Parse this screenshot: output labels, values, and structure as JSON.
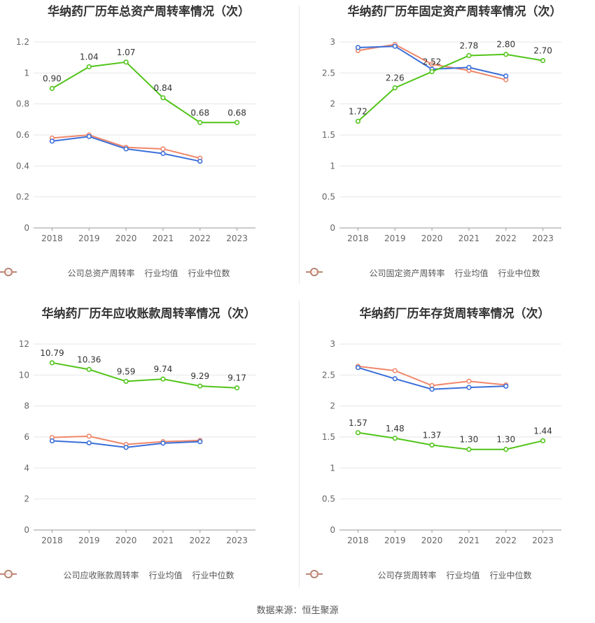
{
  "colors": {
    "company": "#52c41a",
    "avg": "#3b6fd8",
    "median": "#f0876a",
    "grid": "#e6e6e6",
    "axis": "#999999"
  },
  "source_text": "数据来源：恒生聚源",
  "charts": [
    {
      "title": "华纳药厂历年总资产周转率情况（次）",
      "legend": [
        "公司总资产周转率",
        "行业均值",
        "行业中位数"
      ],
      "chart_data": {
        "type": "line",
        "categories": [
          "2018",
          "2019",
          "2020",
          "2021",
          "2022",
          "2023"
        ],
        "ylim": [
          0,
          1.2
        ],
        "yticks": [
          "0",
          "0.2",
          "0.4",
          "0.6",
          "0.8",
          "1",
          "1.2"
        ],
        "series": [
          {
            "name": "公司总资产周转率",
            "values": [
              0.9,
              1.04,
              1.07,
              0.84,
              0.68,
              0.68
            ],
            "labels": [
              "0.90",
              "1.04",
              "1.07",
              "0.84",
              "0.68",
              "0.68"
            ]
          },
          {
            "name": "行业均值",
            "values": [
              0.56,
              0.59,
              0.51,
              0.48,
              0.43,
              null
            ]
          },
          {
            "name": "行业中位数",
            "values": [
              0.58,
              0.6,
              0.52,
              0.51,
              0.45,
              null
            ]
          }
        ]
      }
    },
    {
      "title": "华纳药厂历年固定资产周转率情况（次）",
      "legend": [
        "公司固定资产周转率",
        "行业均值",
        "行业中位数"
      ],
      "chart_data": {
        "type": "line",
        "categories": [
          "2018",
          "2019",
          "2020",
          "2021",
          "2022",
          "2023"
        ],
        "ylim": [
          0,
          3
        ],
        "yticks": [
          "0",
          "0.5",
          "1",
          "1.5",
          "2",
          "2.5",
          "3"
        ],
        "series": [
          {
            "name": "公司固定资产周转率",
            "values": [
              1.72,
              2.26,
              2.52,
              2.78,
              2.8,
              2.7
            ],
            "labels": [
              "1.72",
              "2.26",
              "2.52",
              "2.78",
              "2.80",
              "2.70"
            ]
          },
          {
            "name": "行业均值",
            "values": [
              2.91,
              2.93,
              2.56,
              2.59,
              2.45,
              null
            ]
          },
          {
            "name": "行业中位数",
            "values": [
              2.86,
              2.96,
              2.64,
              2.54,
              2.39,
              null
            ]
          }
        ]
      }
    },
    {
      "title": "华纳药厂历年应收账款周转率情况（次）",
      "legend": [
        "公司应收账款周转率",
        "行业均值",
        "行业中位数"
      ],
      "chart_data": {
        "type": "line",
        "categories": [
          "2018",
          "2019",
          "2020",
          "2021",
          "2022",
          "2023"
        ],
        "ylim": [
          0,
          12
        ],
        "yticks": [
          "0",
          "2",
          "4",
          "6",
          "8",
          "10",
          "12"
        ],
        "series": [
          {
            "name": "公司应收账款周转率",
            "values": [
              10.79,
              10.36,
              9.59,
              9.74,
              9.29,
              9.17
            ],
            "labels": [
              "10.79",
              "10.36",
              "9.59",
              "9.74",
              "9.29",
              "9.17"
            ]
          },
          {
            "name": "行业均值",
            "values": [
              5.75,
              5.62,
              5.33,
              5.6,
              5.7,
              null
            ]
          },
          {
            "name": "行业中位数",
            "values": [
              5.97,
              6.05,
              5.52,
              5.7,
              5.78,
              null
            ]
          }
        ]
      }
    },
    {
      "title": "华纳药厂历年存货周转率情况（次）",
      "legend": [
        "公司存货周转率",
        "行业均值",
        "行业中位数"
      ],
      "chart_data": {
        "type": "line",
        "categories": [
          "2018",
          "2019",
          "2020",
          "2021",
          "2022",
          "2023"
        ],
        "ylim": [
          0,
          3
        ],
        "yticks": [
          "0",
          "0.5",
          "1",
          "1.5",
          "2",
          "2.5",
          "3"
        ],
        "series": [
          {
            "name": "公司存货周转率",
            "values": [
              1.57,
              1.48,
              1.37,
              1.3,
              1.3,
              1.44
            ],
            "labels": [
              "1.57",
              "1.48",
              "1.37",
              "1.30",
              "1.30",
              "1.44"
            ]
          },
          {
            "name": "行业均值",
            "values": [
              2.62,
              2.44,
              2.27,
              2.3,
              2.32,
              null
            ]
          },
          {
            "name": "行业中位数",
            "values": [
              2.64,
              2.57,
              2.33,
              2.4,
              2.34,
              null
            ]
          }
        ]
      }
    }
  ]
}
